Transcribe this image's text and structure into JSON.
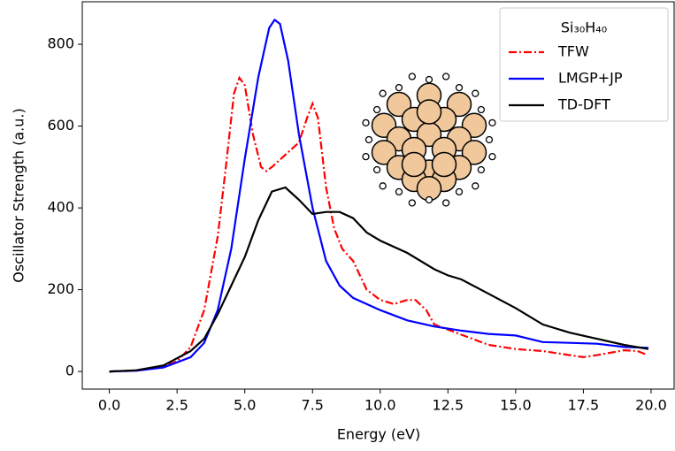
{
  "chart_data": {
    "type": "line",
    "xlabel": "Energy (eV)",
    "ylabel": "Oscillator Strength (a.u.)",
    "legend_title": "Si₃₀H₄₀",
    "legend": "upper right",
    "xlim": [
      -1.0,
      20.85
    ],
    "ylim": [
      -43,
      904
    ],
    "xticks": [
      {
        "value": 0,
        "label": "0.0"
      },
      2.5,
      {
        "value": 5,
        "label": "5.0"
      },
      7.5,
      {
        "value": 10,
        "label": "10.0"
      },
      12.5,
      {
        "value": 15,
        "label": "15.0"
      },
      17.5,
      {
        "value": 20,
        "label": "20.0"
      }
    ],
    "yticks": [
      0,
      200,
      400,
      600,
      800
    ],
    "series": [
      {
        "name": "TFW",
        "color": "#ff0000",
        "dash": "dashdot",
        "x": [
          0,
          1,
          2,
          2.5,
          3,
          3.5,
          4,
          4.3,
          4.6,
          4.8,
          5,
          5.3,
          5.6,
          5.8,
          6,
          6.5,
          7,
          7.3,
          7.5,
          7.7,
          8,
          8.3,
          8.6,
          9,
          9.5,
          10,
          10.5,
          11,
          11.3,
          11.7,
          12,
          13,
          14,
          15,
          16,
          17,
          17.5,
          18,
          19,
          19.5,
          19.8
        ],
        "values": [
          0,
          2,
          12,
          25,
          60,
          150,
          330,
          500,
          680,
          718,
          700,
          580,
          500,
          490,
          500,
          530,
          560,
          620,
          655,
          620,
          450,
          350,
          300,
          270,
          200,
          175,
          165,
          175,
          175,
          150,
          115,
          90,
          65,
          55,
          50,
          40,
          35,
          40,
          52,
          50,
          42
        ]
      },
      {
        "name": "LMGP+JP",
        "color": "#0000ff",
        "dash": "solid",
        "x": [
          0,
          1,
          2,
          3,
          3.5,
          4,
          4.5,
          5,
          5.5,
          5.9,
          6.1,
          6.3,
          6.6,
          7,
          7.5,
          8,
          8.5,
          9,
          10,
          11,
          12,
          13,
          14,
          15,
          16,
          17,
          18,
          19,
          19.9
        ],
        "values": [
          0,
          2,
          10,
          35,
          70,
          150,
          300,
          520,
          720,
          840,
          860,
          850,
          760,
          580,
          400,
          270,
          210,
          180,
          150,
          125,
          110,
          100,
          92,
          88,
          72,
          70,
          68,
          60,
          58
        ]
      },
      {
        "name": "TD-DFT",
        "color": "#000000",
        "dash": "solid",
        "x": [
          0,
          1,
          2,
          3,
          3.5,
          4,
          4.5,
          5,
          5.5,
          6,
          6.5,
          7,
          7.5,
          8,
          8.5,
          9,
          9.5,
          10,
          11,
          12,
          12.5,
          13,
          14,
          15,
          16,
          17,
          18,
          19,
          19.9
        ],
        "values": [
          0,
          3,
          15,
          50,
          80,
          140,
          210,
          280,
          370,
          440,
          450,
          420,
          385,
          390,
          390,
          375,
          340,
          320,
          290,
          250,
          235,
          225,
          190,
          155,
          115,
          95,
          80,
          65,
          55
        ]
      }
    ]
  }
}
